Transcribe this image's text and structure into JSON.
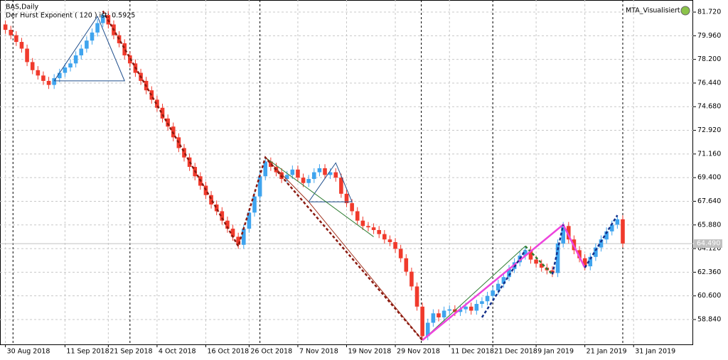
{
  "chart_data": {
    "type": "candlestick",
    "title": "BAS,Daily",
    "subtitle": "Der Hurst Exponent ( 120 ) ist: 0.5925",
    "indicator_label": "MTA_Visualisiert",
    "bull_color": "#3fa4ee",
    "bear_color": "#f03a2c",
    "grid": true,
    "xlim": [
      -1,
      127
    ],
    "ylim": [
      56.99,
      82.62
    ],
    "yticks": [
      {
        "value": 81.72,
        "label": "81.720"
      },
      {
        "value": 79.96,
        "label": "79.960"
      },
      {
        "value": 78.2,
        "label": "78.200"
      },
      {
        "value": 76.44,
        "label": "76.440"
      },
      {
        "value": 74.68,
        "label": "74.680"
      },
      {
        "value": 72.92,
        "label": "72.920"
      },
      {
        "value": 71.16,
        "label": "71.160"
      },
      {
        "value": 69.4,
        "label": "69.400"
      },
      {
        "value": 67.64,
        "label": "67.640"
      },
      {
        "value": 65.88,
        "label": "65.880"
      },
      {
        "value": 64.12,
        "label": "64.120"
      },
      {
        "value": 62.36,
        "label": "62.360"
      },
      {
        "value": 60.6,
        "label": "60.600"
      },
      {
        "value": 58.84,
        "label": "58.840"
      }
    ],
    "xticks": [
      {
        "value": 0,
        "label": "30 Aug 2018"
      },
      {
        "value": 11,
        "label": "11 Sep 2018"
      },
      {
        "value": 19,
        "label": "21 Sep 2018"
      },
      {
        "value": 28,
        "label": "4 Oct 2018"
      },
      {
        "value": 37,
        "label": "16 Oct 2018"
      },
      {
        "value": 45,
        "label": "26 Oct 2018"
      },
      {
        "value": 54,
        "label": "7 Nov 2018"
      },
      {
        "value": 63,
        "label": "19 Nov 2018"
      },
      {
        "value": 72,
        "label": "29 Nov 2018"
      },
      {
        "value": 82,
        "label": "11 Dec 2018"
      },
      {
        "value": 90,
        "label": "21 Dec 2018"
      },
      {
        "value": 98,
        "label": "9 Jan 2019"
      },
      {
        "value": 107,
        "label": "21 Jan 2019"
      },
      {
        "value": 116,
        "label": "31 Jan 2019"
      }
    ],
    "separators": [
      1.4,
      23,
      47,
      76.8,
      90,
      114
    ],
    "last_price": {
      "value": 64.49,
      "label": "64.490"
    },
    "open": [
      80.8,
      80.4,
      80.0,
      79.5,
      79.0,
      78.0,
      77.4,
      77.0,
      76.6,
      76.3,
      76.8,
      77.2,
      77.6,
      77.9,
      78.5,
      79.0,
      79.6,
      80.2,
      80.9,
      81.5,
      80.8,
      80.0,
      79.4,
      78.5,
      77.9,
      77.2,
      76.6,
      75.9,
      75.2,
      74.6,
      73.8,
      73.2,
      72.4,
      71.6,
      70.9,
      70.2,
      69.5,
      68.8,
      68.1,
      67.4,
      66.9,
      66.2,
      65.6,
      65.0,
      64.4,
      65.6,
      66.8,
      68.0,
      69.5,
      70.6,
      70.2,
      69.8,
      69.3,
      69.6,
      70.0,
      69.4,
      69.0,
      69.3,
      69.8,
      70.1,
      69.6,
      69.8,
      69.4,
      68.2,
      67.5,
      66.9,
      66.2,
      65.8,
      65.7,
      65.5,
      65.2,
      64.8,
      64.6,
      64.1,
      63.4,
      62.4,
      61.3,
      59.8,
      57.6,
      58.6,
      59.3,
      59.0,
      59.5,
      59.6,
      59.4,
      59.6,
      59.8,
      59.5,
      60.0,
      60.2,
      60.6,
      61.0,
      61.5,
      62.0,
      62.6,
      63.1,
      63.6,
      64.0,
      63.3,
      63.0,
      62.7,
      62.5,
      62.3,
      64.5,
      65.8,
      64.8,
      64.0,
      63.4,
      62.8,
      63.5,
      64.2,
      64.8,
      65.4,
      65.9,
      66.3
    ],
    "high": [
      81.1,
      80.7,
      80.3,
      79.8,
      79.3,
      78.3,
      77.7,
      77.3,
      76.9,
      77.1,
      77.5,
      77.9,
      78.2,
      78.8,
      79.3,
      79.9,
      80.5,
      81.2,
      81.8,
      81.8,
      81.1,
      80.3,
      79.7,
      78.8,
      78.2,
      77.5,
      76.9,
      76.2,
      75.5,
      74.9,
      74.1,
      73.5,
      72.7,
      71.9,
      71.2,
      70.5,
      69.8,
      69.1,
      68.4,
      67.7,
      67.2,
      66.5,
      65.9,
      65.3,
      65.9,
      67.1,
      68.3,
      69.8,
      70.9,
      70.9,
      70.5,
      70.1,
      69.9,
      70.3,
      70.3,
      69.7,
      69.6,
      70.1,
      70.4,
      70.4,
      70.1,
      70.1,
      69.7,
      68.5,
      67.8,
      67.2,
      66.5,
      66.1,
      66.0,
      65.8,
      65.5,
      65.1,
      64.9,
      64.4,
      63.7,
      62.7,
      61.6,
      60.1,
      58.9,
      59.6,
      59.6,
      59.8,
      59.9,
      59.9,
      59.9,
      60.1,
      60.1,
      60.3,
      60.5,
      60.9,
      61.3,
      61.8,
      62.3,
      62.9,
      63.4,
      63.9,
      64.3,
      64.3,
      63.6,
      63.3,
      63.0,
      62.8,
      64.8,
      66.1,
      66.1,
      65.1,
      64.3,
      63.7,
      63.8,
      64.5,
      65.1,
      65.7,
      66.2,
      66.6,
      66.6
    ],
    "low": [
      80.1,
      79.7,
      79.2,
      78.7,
      77.7,
      77.1,
      76.7,
      76.3,
      76.0,
      76.0,
      76.5,
      76.9,
      77.3,
      77.6,
      78.2,
      78.7,
      79.3,
      79.9,
      80.6,
      80.5,
      79.7,
      79.1,
      78.2,
      77.6,
      76.9,
      76.3,
      75.6,
      74.9,
      74.3,
      73.5,
      72.9,
      72.1,
      71.3,
      70.6,
      69.9,
      69.2,
      68.5,
      67.8,
      67.1,
      66.6,
      65.9,
      65.3,
      64.7,
      64.1,
      64.1,
      65.3,
      66.5,
      67.7,
      69.2,
      69.9,
      69.5,
      69.0,
      69.0,
      69.3,
      69.1,
      68.7,
      68.7,
      69.0,
      69.5,
      69.3,
      69.3,
      69.1,
      67.9,
      67.2,
      66.6,
      65.9,
      65.5,
      65.4,
      65.2,
      64.9,
      64.5,
      64.3,
      63.8,
      63.1,
      62.1,
      61.0,
      59.5,
      57.3,
      57.3,
      58.3,
      58.7,
      58.7,
      59.2,
      59.1,
      59.1,
      59.3,
      59.2,
      59.2,
      59.7,
      59.9,
      60.3,
      60.7,
      61.2,
      61.7,
      62.3,
      62.8,
      63.3,
      63.0,
      62.7,
      62.4,
      62.2,
      62.0,
      62.0,
      64.2,
      64.5,
      63.7,
      63.1,
      62.5,
      62.5,
      63.2,
      63.9,
      64.5,
      65.1,
      65.6,
      64.2
    ],
    "close": [
      80.4,
      80.0,
      79.5,
      79.0,
      78.0,
      77.4,
      77.0,
      76.6,
      76.3,
      76.8,
      77.2,
      77.6,
      77.9,
      78.5,
      79.0,
      79.6,
      80.2,
      80.9,
      81.5,
      80.8,
      80.0,
      79.4,
      78.5,
      77.9,
      77.2,
      76.6,
      75.9,
      75.2,
      74.6,
      73.8,
      73.2,
      72.4,
      71.6,
      70.9,
      70.2,
      69.5,
      68.8,
      68.1,
      67.4,
      66.9,
      66.2,
      65.6,
      65.0,
      64.4,
      65.6,
      66.8,
      68.0,
      69.5,
      70.6,
      70.2,
      69.8,
      69.3,
      69.6,
      70.0,
      69.4,
      69.0,
      69.3,
      69.8,
      70.1,
      69.6,
      69.8,
      69.4,
      68.2,
      67.5,
      66.9,
      66.2,
      65.8,
      65.7,
      65.5,
      65.2,
      64.8,
      64.6,
      64.1,
      63.4,
      62.4,
      61.3,
      59.8,
      57.6,
      58.6,
      59.3,
      59.0,
      59.5,
      59.6,
      59.4,
      59.6,
      59.8,
      59.5,
      60.0,
      60.2,
      60.6,
      61.0,
      61.5,
      62.0,
      62.6,
      63.1,
      63.6,
      64.0,
      63.3,
      63.0,
      62.7,
      62.5,
      62.3,
      64.5,
      65.8,
      64.8,
      64.0,
      63.4,
      62.8,
      63.5,
      64.2,
      64.8,
      65.4,
      65.9,
      66.3,
      64.5
    ],
    "overlays": [
      {
        "color": "#1f4e8c",
        "width": 1,
        "dash": "",
        "points": [
          [
            9,
            76.6
          ],
          [
            17,
            81.4
          ],
          [
            22,
            76.6
          ],
          [
            9,
            76.6
          ]
        ]
      },
      {
        "color": "#1f4e8c",
        "width": 1,
        "dash": "",
        "points": [
          [
            56,
            67.6
          ],
          [
            61,
            70.5
          ],
          [
            64,
            67.6
          ],
          [
            56,
            67.6
          ]
        ]
      },
      {
        "color": "#2e7d32",
        "width": 1,
        "dash": "",
        "points": [
          [
            48,
            70.9
          ],
          [
            68,
            65.0
          ]
        ]
      },
      {
        "color": "#2e7d32",
        "width": 1,
        "dash": "",
        "points": [
          [
            77,
            57.3
          ],
          [
            96,
            64.3
          ]
        ]
      },
      {
        "color": "#a0301c",
        "width": 1,
        "dash": "",
        "points": [
          [
            48,
            70.9
          ],
          [
            56,
            67.6
          ],
          [
            77,
            57.3
          ]
        ]
      },
      {
        "color": "#8b1a10",
        "width": 2.5,
        "dash": "4 3",
        "points": [
          [
            18,
            81.8
          ],
          [
            43,
            64.3
          ],
          [
            48,
            70.9
          ],
          [
            77,
            57.3
          ]
        ]
      },
      {
        "color": "#2e7d32",
        "width": 2.5,
        "dash": "4 3",
        "points": [
          [
            96,
            64.3
          ],
          [
            101,
            62.2
          ]
        ]
      },
      {
        "color": "#ee44dd",
        "width": 2.5,
        "dash": "",
        "points": [
          [
            77,
            57.3
          ],
          [
            103,
            65.9
          ],
          [
            107,
            62.7
          ]
        ]
      },
      {
        "color": "#14308a",
        "width": 2.5,
        "dash": "4 3",
        "points": [
          [
            88,
            59.0
          ],
          [
            96,
            64.0
          ]
        ]
      },
      {
        "color": "#14308a",
        "width": 2.5,
        "dash": "4 3",
        "points": [
          [
            101,
            62.2
          ],
          [
            103,
            65.9
          ]
        ]
      },
      {
        "color": "#14308a",
        "width": 2.5,
        "dash": "4 3",
        "points": [
          [
            107,
            62.7
          ],
          [
            113,
            66.6
          ]
        ]
      }
    ]
  }
}
